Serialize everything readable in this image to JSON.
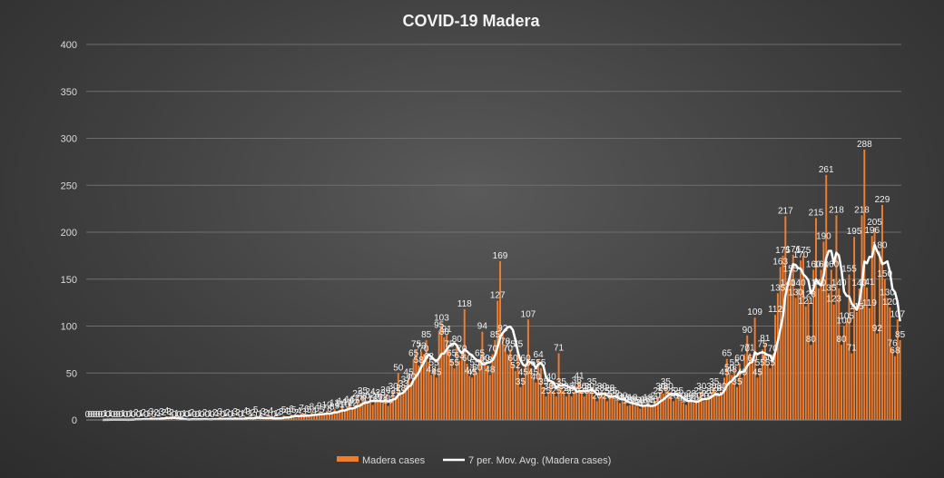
{
  "chart_data": {
    "type": "bar",
    "title": "COVID-19  Madera",
    "xlabel": "",
    "ylabel": "",
    "ylim": [
      0,
      400
    ],
    "yticks": [
      "0",
      "50",
      "100",
      "150",
      "200",
      "250",
      "300",
      "350",
      "400"
    ],
    "grid": true,
    "legend_placement": "bottom",
    "series": [
      {
        "name": "Madera cases",
        "type": "bar",
        "color": "#ed7d31",
        "values": [
          0,
          0,
          0,
          0,
          0,
          0,
          0,
          1,
          0,
          1,
          0,
          0,
          0,
          0,
          1,
          0,
          0,
          1,
          0,
          2,
          0,
          1,
          2,
          0,
          1,
          3,
          0,
          2,
          1,
          3,
          2,
          4,
          3,
          2,
          0,
          1,
          0,
          0,
          1,
          0,
          1,
          2,
          0,
          0,
          1,
          0,
          2,
          0,
          1,
          0,
          2,
          1,
          3,
          0,
          1,
          2,
          0,
          1,
          3,
          2,
          0,
          1,
          4,
          3,
          1,
          2,
          5,
          0,
          1,
          3,
          2,
          1,
          4,
          0,
          1,
          2,
          3,
          5,
          4,
          3,
          6,
          5,
          2,
          4,
          7,
          3,
          6,
          5,
          8,
          4,
          6,
          9,
          5,
          7,
          10,
          6,
          8,
          12,
          9,
          11,
          14,
          10,
          13,
          16,
          12,
          15,
          22,
          18,
          25,
          20,
          17,
          24,
          16,
          21,
          19,
          23,
          18,
          26,
          15,
          22,
          30,
          25,
          50,
          28,
          33,
          37,
          45,
          40,
          65,
          75,
          58,
          73,
          70,
          85,
          62,
          48,
          55,
          45,
          95,
          103,
          88,
          91,
          75,
          65,
          55,
          80,
          63,
          70,
          118,
          60,
          47,
          45,
          55,
          50,
          65,
          94,
          60,
          58,
          48,
          70,
          85,
          127,
          169,
          92,
          78,
          70,
          75,
          60,
          52,
          75,
          35,
          45,
          60,
          107,
          55,
          45,
          40,
          64,
          55,
          35,
          25,
          30,
          40,
          30,
          25,
          71,
          35,
          30,
          25,
          28,
          25,
          30,
          36,
          41,
          30,
          25,
          28,
          30,
          35,
          25,
          20,
          28,
          30,
          25,
          20,
          28,
          25,
          22,
          20,
          18,
          20,
          18,
          15,
          16,
          18,
          15,
          14,
          12,
          15,
          16,
          18,
          14,
          16,
          20,
          25,
          30,
          28,
          35,
          30,
          25,
          20,
          22,
          25,
          20,
          18,
          16,
          20,
          22,
          18,
          20,
          25,
          30,
          20,
          22,
          25,
          30,
          35,
          28,
          25,
          30,
          45,
          65,
          50,
          48,
          55,
          35,
          60,
          45,
          70,
          90,
          71,
          60,
          109,
          45,
          55,
          75,
          81,
          60,
          55,
          70,
          112,
          135,
          163,
          175,
          217,
          140,
          155,
          176,
          130,
          140,
          170,
          175,
          121,
          128,
          80,
          160,
          215,
          140,
          160,
          190,
          261,
          135,
          160,
          123,
          218,
          140,
          80,
          100,
          105,
          155,
          71,
          195,
          115,
          140,
          218,
          288,
          141,
          119,
          196,
          205,
          92,
          180,
          229,
          150,
          130,
          120,
          76,
          68,
          107,
          85
        ]
      },
      {
        "name": "7 per. Mov. Avg. (Madera cases)",
        "type": "line",
        "color": "#ffffff",
        "window": 7
      }
    ],
    "data_labels": [
      "0",
      "0",
      "0",
      "0",
      "0",
      "0",
      "0",
      "1",
      "0",
      "1",
      "0",
      "0",
      "0",
      "0",
      "1",
      "0",
      "0",
      "1",
      "0",
      "2",
      "0",
      "1",
      "2",
      "0",
      "1",
      "3",
      "0",
      "2",
      "1",
      "3",
      "2",
      "4",
      "3",
      "2",
      "0",
      "1",
      "0",
      "0",
      "1",
      "0",
      "1",
      "2",
      "0",
      "0",
      "1",
      "0",
      "2",
      "0",
      "1",
      "0",
      "2",
      "1",
      "3",
      "0",
      "1",
      "2",
      "0",
      "1",
      "3",
      "2",
      "0",
      "1",
      "4",
      "3",
      "1",
      "2",
      "5",
      "0",
      "1",
      "3",
      "2",
      "1",
      "4",
      "0",
      "1",
      "2",
      "3",
      "5",
      "4",
      "3",
      "6",
      "5",
      "2",
      "4",
      "7",
      "3",
      "6",
      "5",
      "8",
      "4",
      "6",
      "9",
      "5",
      "7",
      "10",
      "6",
      "8",
      "12",
      "9",
      "11",
      "14",
      "10",
      "13",
      "16",
      "12",
      "15",
      "22",
      "18",
      "25",
      "20",
      "17",
      "24",
      "16",
      "21",
      "19",
      "23",
      "18",
      "26",
      "15",
      "22",
      "30",
      "25",
      "50",
      "28",
      "33",
      "37",
      "45",
      "40",
      "65",
      "75",
      "58",
      "73",
      "70",
      "85",
      "62",
      "48",
      "55",
      "45",
      "95",
      "103",
      "88",
      "91",
      "75",
      "65",
      "55",
      "80",
      "63",
      "70",
      "118",
      "60",
      "47",
      "45",
      "55",
      "50",
      "65",
      "94",
      "60",
      "58",
      "48",
      "70",
      "85",
      "127",
      "169",
      "92",
      "78",
      "70",
      "75",
      "60",
      "52",
      "75",
      "35",
      "45",
      "60",
      "107",
      "55",
      "45",
      "40",
      "64",
      "55",
      "35",
      "25",
      "30",
      "40",
      "30",
      "25",
      "71",
      "35",
      "30",
      "25",
      "28",
      "25",
      "30",
      "36",
      "41",
      "30",
      "25",
      "28",
      "30",
      "35",
      "25",
      "20",
      "28",
      "30",
      "25",
      "20",
      "28",
      "25",
      "22",
      "20",
      "18",
      "20",
      "18",
      "15",
      "16",
      "18",
      "15",
      "14",
      "12",
      "15",
      "16",
      "18",
      "14",
      "16",
      "20",
      "25",
      "30",
      "28",
      "35",
      "30",
      "25",
      "20",
      "22",
      "25",
      "20",
      "18",
      "16",
      "20",
      "22",
      "18",
      "20",
      "25",
      "30",
      "20",
      "22",
      "25",
      "30",
      "35",
      "28",
      "25",
      "30",
      "45",
      "65",
      "50",
      "48",
      "55",
      "35",
      "60",
      "45",
      "70",
      "90",
      "71",
      "60",
      "109",
      "45",
      "55",
      "75",
      "81",
      "60",
      "55",
      "70",
      "112",
      "135",
      "163",
      "175",
      "217",
      "140",
      "155",
      "176",
      "130",
      "140",
      "170",
      "175",
      "121",
      "128",
      "80",
      "160",
      "215",
      "140",
      "160",
      "190",
      "261",
      "135",
      "160",
      "123",
      "218",
      "140",
      "80",
      "100",
      "105",
      "155",
      "71",
      "195",
      "115",
      "140",
      "218",
      "288",
      "141",
      "119",
      "196",
      "205",
      "92",
      "180",
      "229",
      "150",
      "130",
      "120",
      "76",
      "68",
      "107",
      "85"
    ]
  }
}
